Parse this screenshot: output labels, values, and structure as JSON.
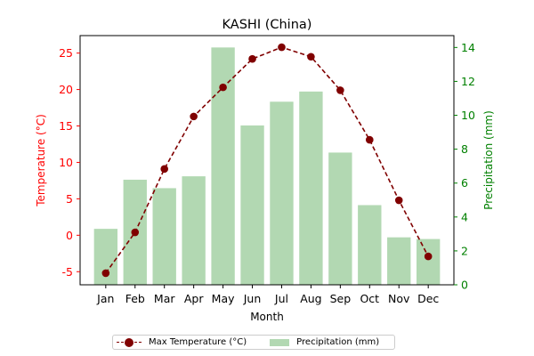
{
  "chart_data": {
    "type": "bar+line",
    "title": "KASHI (China)",
    "xlabel": "Month",
    "categories": [
      "Jan",
      "Feb",
      "Mar",
      "Apr",
      "May",
      "Jun",
      "Jul",
      "Aug",
      "Sep",
      "Oct",
      "Nov",
      "Dec"
    ],
    "series": [
      {
        "name": "Max Temperature (°C)",
        "kind": "line",
        "axis": "left",
        "color": "#800000",
        "values": [
          -5.2,
          0.4,
          9.1,
          16.3,
          20.3,
          24.2,
          25.8,
          24.5,
          19.9,
          13.1,
          4.8,
          -2.9
        ]
      },
      {
        "name": "Precipitation (mm)",
        "kind": "bar",
        "axis": "right",
        "color": "#b2d8b2",
        "values": [
          3.3,
          6.2,
          5.7,
          6.4,
          14.0,
          9.4,
          10.8,
          11.4,
          7.8,
          4.7,
          2.8,
          2.7
        ]
      }
    ],
    "y_left": {
      "label": "Temperature (°C)",
      "color": "#ff0000",
      "range": [
        -6.8,
        27.4
      ],
      "ticks": [
        -5,
        0,
        5,
        10,
        15,
        20,
        25
      ]
    },
    "y_right": {
      "label": "Precipitation (mm)",
      "color": "#008000",
      "range": [
        0,
        14.7
      ],
      "ticks": [
        0,
        2,
        4,
        6,
        8,
        10,
        12,
        14
      ]
    },
    "legend_position": "bottom-center",
    "grid": false
  }
}
